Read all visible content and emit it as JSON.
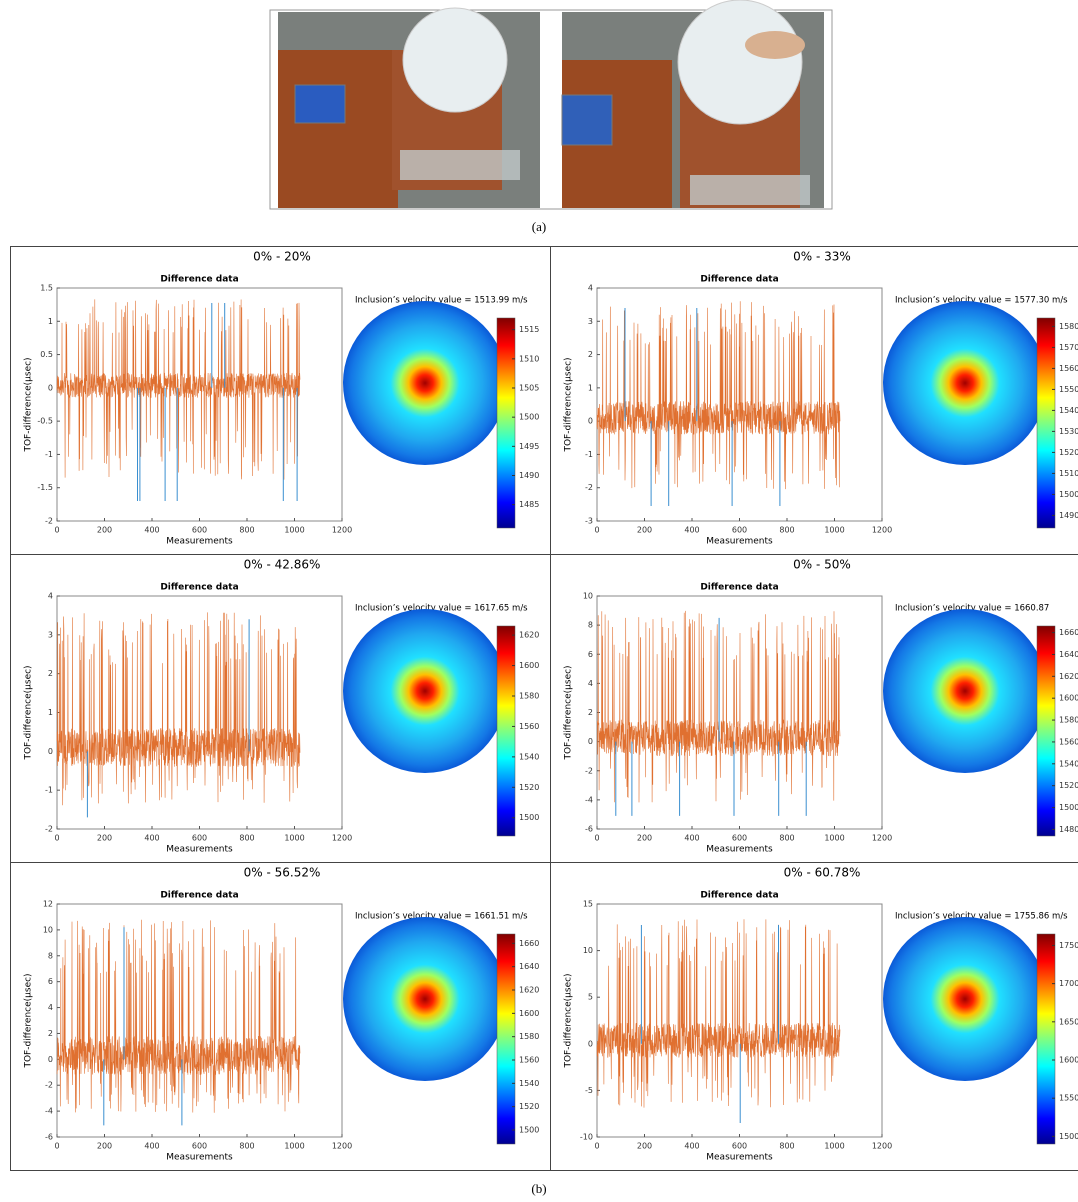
{
  "figure": {
    "panel_a_label": "(a)",
    "panel_b_label": "(b)",
    "panels": [
      {
        "title": "0% - 20%",
        "plot_title": "Difference data",
        "xlabel": "Measurements",
        "ylabel": "TOF-difference(μsec)",
        "xlim": [
          0,
          1200
        ],
        "xticks": [
          0,
          200,
          400,
          600,
          800,
          1000,
          1200
        ],
        "ylim": [
          -2,
          1.5
        ],
        "yticks": [
          -2,
          -1.5,
          -1,
          -0.5,
          0,
          0.5,
          1,
          1.5
        ],
        "velocity_text": "Inclusion’s velocity value = 1513.99 m/s",
        "colorbar_lim": [
          1481,
          1517
        ],
        "colorbar_ticks": [
          1485,
          1490,
          1495,
          1500,
          1505,
          1510,
          1515
        ]
      },
      {
        "title": "0% - 33%",
        "plot_title": "Difference data",
        "xlabel": "Measurements",
        "ylabel": "TOF-difference(μsec)",
        "xlim": [
          0,
          1200
        ],
        "xticks": [
          0,
          200,
          400,
          600,
          800,
          1000,
          1200
        ],
        "ylim": [
          -3,
          4
        ],
        "yticks": [
          -3,
          -2,
          -1,
          0,
          1,
          2,
          3,
          4
        ],
        "velocity_text": "Inclusion’s velocity value = 1577.30 m/s",
        "colorbar_lim": [
          1484,
          1584
        ],
        "colorbar_ticks": [
          1490,
          1500,
          1510,
          1520,
          1530,
          1540,
          1550,
          1560,
          1570,
          1580
        ]
      },
      {
        "title": "0% - 42.86%",
        "plot_title": "Difference data",
        "xlabel": "Measurements",
        "ylabel": "TOF-difference(μsec)",
        "xlim": [
          0,
          1200
        ],
        "xticks": [
          0,
          200,
          400,
          600,
          800,
          1000,
          1200
        ],
        "ylim": [
          -2,
          4
        ],
        "yticks": [
          -2,
          -1,
          0,
          1,
          2,
          3,
          4
        ],
        "velocity_text": "Inclusion’s velocity value = 1617.65 m/s",
        "colorbar_lim": [
          1488,
          1626
        ],
        "colorbar_ticks": [
          1500,
          1520,
          1540,
          1560,
          1580,
          1600,
          1620
        ]
      },
      {
        "title": "0% - 50%",
        "plot_title": "Difference data",
        "xlabel": "Measurements",
        "ylabel": "TOF-difference(μsec)",
        "xlim": [
          0,
          1200
        ],
        "xticks": [
          0,
          200,
          400,
          600,
          800,
          1000,
          1200
        ],
        "ylim": [
          -6,
          10
        ],
        "yticks": [
          -6,
          -4,
          -2,
          0,
          2,
          4,
          6,
          8,
          10
        ],
        "velocity_text": "Inclusion’s velocity value = 1660.87",
        "colorbar_lim": [
          1474,
          1666
        ],
        "colorbar_ticks": [
          1480,
          1500,
          1520,
          1540,
          1560,
          1580,
          1600,
          1620,
          1640,
          1660
        ]
      },
      {
        "title": "0% - 56.52%",
        "plot_title": "Difference data",
        "xlabel": "Measurements",
        "ylabel": "TOF-difference(μsec)",
        "xlim": [
          0,
          1200
        ],
        "xticks": [
          0,
          200,
          400,
          600,
          800,
          1000,
          1200
        ],
        "ylim": [
          -6,
          12
        ],
        "yticks": [
          -6,
          -4,
          -2,
          0,
          2,
          4,
          6,
          8,
          10,
          12
        ],
        "velocity_text": "Inclusion’s velocity value = 1661.51 m/s",
        "colorbar_lim": [
          1488,
          1668
        ],
        "colorbar_ticks": [
          1500,
          1520,
          1540,
          1560,
          1580,
          1600,
          1620,
          1640,
          1660
        ]
      },
      {
        "title": "0% - 60.78%",
        "plot_title": "Difference data",
        "xlabel": "Measurements",
        "ylabel": "TOF-difference(μsec)",
        "xlim": [
          0,
          1200
        ],
        "xticks": [
          0,
          200,
          400,
          600,
          800,
          1000,
          1200
        ],
        "ylim": [
          -10,
          15
        ],
        "yticks": [
          -10,
          -5,
          0,
          5,
          10,
          15
        ],
        "velocity_text": "Inclusion’s velocity value = 1755.86 m/s",
        "colorbar_lim": [
          1490,
          1765
        ],
        "colorbar_ticks": [
          1500,
          1550,
          1600,
          1650,
          1700,
          1750
        ]
      }
    ]
  }
}
